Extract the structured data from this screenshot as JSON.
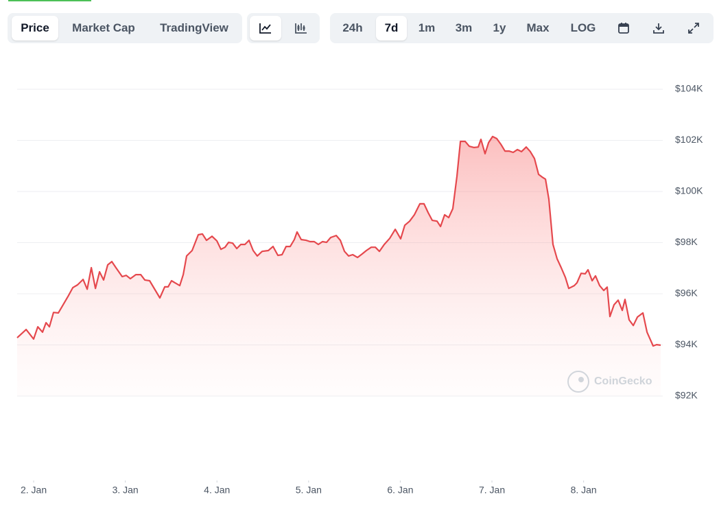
{
  "toolbar": {
    "tabs": [
      "Price",
      "Market Cap",
      "TradingView"
    ],
    "ranges": [
      "24h",
      "7d",
      "1m",
      "3m",
      "1y",
      "Max",
      "LOG"
    ]
  },
  "chart_data": {
    "type": "area",
    "color": "#e5484d",
    "watermark": "CoinGecko",
    "x": [
      1.82,
      1.918,
      2.0,
      2.045,
      2.097,
      2.135,
      2.172,
      2.217,
      2.269,
      2.374,
      2.427,
      2.479,
      2.539,
      2.584,
      2.629,
      2.674,
      2.719,
      2.763,
      2.808,
      2.853,
      2.898,
      2.966,
      3.01,
      3.055,
      3.115,
      3.168,
      3.213,
      3.265,
      3.377,
      3.43,
      3.467,
      3.504,
      3.594,
      3.632,
      3.669,
      3.729,
      3.796,
      3.841,
      3.886,
      3.946,
      3.999,
      4.043,
      4.088,
      4.126,
      4.171,
      4.216,
      4.26,
      4.305,
      4.35,
      4.395,
      4.44,
      4.493,
      4.56,
      4.612,
      4.665,
      4.71,
      4.754,
      4.799,
      4.844,
      4.874,
      4.919,
      4.972,
      5.016,
      5.061,
      5.106,
      5.151,
      5.196,
      5.241,
      5.301,
      5.346,
      5.391,
      5.436,
      5.481,
      5.533,
      5.585,
      5.63,
      5.683,
      5.728,
      5.772,
      5.825,
      5.885,
      5.945,
      6.004,
      6.049,
      6.102,
      6.154,
      6.214,
      6.259,
      6.304,
      6.349,
      6.401,
      6.439,
      6.484,
      6.528,
      6.573,
      6.618,
      6.656,
      6.708,
      6.753,
      6.805,
      6.85,
      6.88,
      6.925,
      6.963,
      7.007,
      7.052,
      7.097,
      7.142,
      7.187,
      7.232,
      7.277,
      7.322,
      7.374,
      7.419,
      7.464,
      7.509,
      7.546,
      7.584,
      7.621,
      7.666,
      7.711,
      7.756,
      7.801,
      7.838,
      7.898,
      7.928,
      7.973,
      8.018,
      8.048,
      8.093,
      8.13,
      8.175,
      8.22,
      8.257,
      8.287,
      8.332,
      8.377,
      8.422,
      8.452,
      8.497,
      8.542,
      8.587,
      8.647,
      8.692,
      8.759,
      8.796,
      8.841
    ],
    "values": [
      94280,
      94600,
      94230,
      94710,
      94500,
      94870,
      94710,
      95270,
      95250,
      95890,
      96240,
      96350,
      96560,
      96180,
      97020,
      96210,
      96860,
      96540,
      97130,
      97260,
      97020,
      96670,
      96720,
      96590,
      96750,
      96750,
      96540,
      96510,
      95840,
      96270,
      96270,
      96510,
      96320,
      96750,
      97480,
      97690,
      98310,
      98340,
      98090,
      98250,
      98070,
      97740,
      97820,
      98010,
      97980,
      97770,
      97930,
      97930,
      98090,
      97690,
      97480,
      97660,
      97690,
      97850,
      97500,
      97530,
      97850,
      97850,
      98120,
      98420,
      98120,
      98090,
      98040,
      98040,
      97930,
      98040,
      98010,
      98200,
      98280,
      98090,
      97660,
      97480,
      97530,
      97420,
      97560,
      97690,
      97820,
      97820,
      97660,
      97930,
      98170,
      98520,
      98150,
      98680,
      98840,
      99090,
      99520,
      99520,
      99170,
      98870,
      98840,
      98630,
      99090,
      98980,
      99330,
      100590,
      101960,
      101960,
      101770,
      101720,
      101740,
      102040,
      101480,
      101910,
      102150,
      102070,
      101850,
      101580,
      101580,
      101530,
      101640,
      101560,
      101740,
      101560,
      101290,
      100670,
      100570,
      100480,
      99700,
      97930,
      97370,
      97020,
      96640,
      96210,
      96320,
      96430,
      96800,
      96780,
      96940,
      96510,
      96700,
      96320,
      96130,
      96260,
      95110,
      95570,
      95750,
      95350,
      95780,
      94980,
      94760,
      95090,
      95250,
      94500,
      93960,
      94010,
      93990
    ],
    "xlim": [
      1.82,
      8.841
    ],
    "xticks": [
      {
        "value": 2,
        "label": "2. Jan"
      },
      {
        "value": 3,
        "label": "3. Jan"
      },
      {
        "value": 4,
        "label": "4. Jan"
      },
      {
        "value": 5,
        "label": "5. Jan"
      },
      {
        "value": 6,
        "label": "6. Jan"
      },
      {
        "value": 7,
        "label": "7. Jan"
      },
      {
        "value": 8,
        "label": "8. Jan"
      }
    ],
    "ylim": [
      92000,
      104000
    ],
    "yticks": [
      {
        "value": 92000,
        "label": "$92K"
      },
      {
        "value": 94000,
        "label": "$94K"
      },
      {
        "value": 96000,
        "label": "$96K"
      },
      {
        "value": 98000,
        "label": "$98K"
      },
      {
        "value": 100000,
        "label": "$100K"
      },
      {
        "value": 102000,
        "label": "$102K"
      },
      {
        "value": 104000,
        "label": "$104K"
      }
    ],
    "grid": true
  }
}
